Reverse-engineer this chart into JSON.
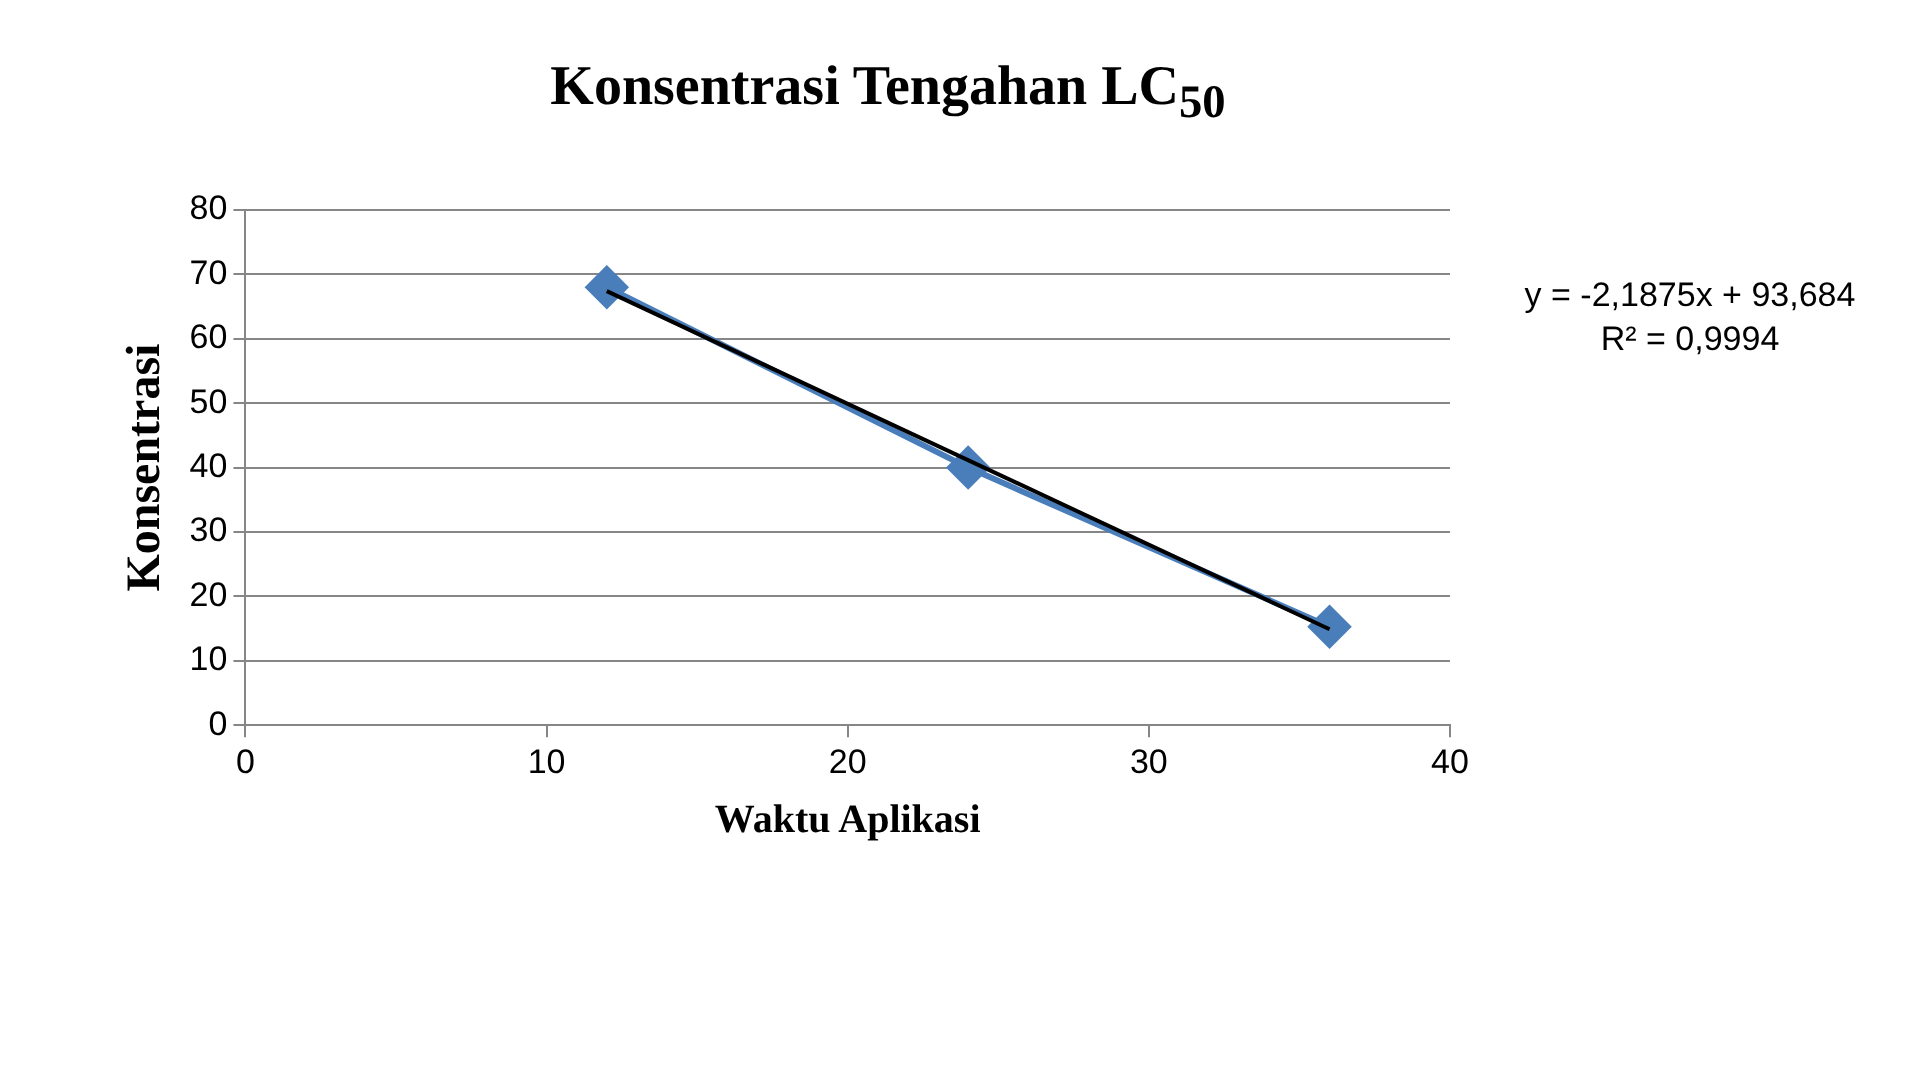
{
  "chart_data": {
    "type": "line",
    "title": "Konsentrasi Tengahan LC$_{50}$",
    "xlabel": "Waktu Aplikasi",
    "ylabel": "Konsentrasi",
    "xlim": [
      0,
      40
    ],
    "xticks": [
      0,
      10,
      20,
      30,
      40
    ],
    "ylim": [
      0,
      80
    ],
    "yticks": [
      0,
      10,
      20,
      30,
      40,
      50,
      60,
      70,
      80
    ],
    "grid": "y",
    "series": [
      {
        "marker": "diamond",
        "color": "#4a7ebb",
        "x": [
          12,
          24,
          36
        ],
        "values": [
          68,
          40,
          15.3
        ]
      },
      {
        "marker": "none",
        "color": "#000000",
        "x": [
          12,
          36
        ],
        "values": [
          67.4,
          14.9
        ]
      }
    ],
    "annotations": [
      "y = -2,1875x + 93,684",
      "R² = 0,9994"
    ]
  }
}
